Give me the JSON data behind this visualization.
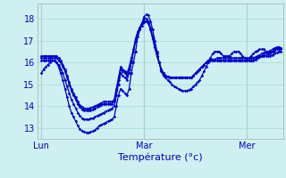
{
  "xlabel": "Température (°c)",
  "background_color": "#cff0f0",
  "grid_color": "#aadddd",
  "line_color": "#0000cc",
  "marker": "D",
  "marker_size": 1.8,
  "linewidth": 0.9,
  "day_labels": [
    "Lun",
    "Mar",
    "Mer"
  ],
  "day_positions": [
    0,
    48,
    96
  ],
  "yticks": [
    13,
    14,
    15,
    16,
    17,
    18
  ],
  "ylim": [
    12.5,
    18.7
  ],
  "xlim": [
    -2,
    113
  ],
  "n_points": 113,
  "series": [
    [
      15.5,
      15.7,
      15.8,
      15.9,
      16.0,
      16.1,
      16.1,
      16.0,
      15.8,
      15.5,
      15.2,
      14.8,
      14.4,
      14.0,
      13.7,
      13.5,
      13.3,
      13.1,
      12.95,
      12.85,
      12.82,
      12.8,
      12.8,
      12.82,
      12.85,
      12.9,
      13.0,
      13.1,
      13.15,
      13.2,
      13.25,
      13.3,
      13.35,
      13.4,
      13.5,
      14.0,
      14.5,
      14.8,
      14.7,
      14.6,
      14.5,
      14.8,
      15.5,
      16.0,
      16.5,
      17.2,
      17.5,
      17.8,
      18.1,
      18.2,
      18.15,
      17.9,
      17.5,
      17.0,
      16.5,
      16.0,
      15.6,
      15.4,
      15.3,
      15.2,
      15.1,
      15.0,
      14.9,
      14.85,
      14.8,
      14.75,
      14.7,
      14.7,
      14.72,
      14.75,
      14.8,
      14.9,
      15.0,
      15.1,
      15.2,
      15.4,
      15.6,
      15.8,
      16.0,
      16.2,
      16.4,
      16.5,
      16.5,
      16.5,
      16.4,
      16.3,
      16.3,
      16.3,
      16.3,
      16.4,
      16.5,
      16.5,
      16.5,
      16.4,
      16.3,
      16.2,
      16.1,
      16.2,
      16.3,
      16.4,
      16.5,
      16.55,
      16.6,
      16.6,
      16.6,
      16.5,
      16.4,
      16.4,
      16.5,
      16.6,
      16.65,
      16.7,
      16.65
    ],
    [
      16.1,
      16.1,
      16.1,
      16.1,
      16.1,
      16.1,
      16.1,
      16.0,
      15.9,
      15.7,
      15.5,
      15.2,
      14.9,
      14.6,
      14.3,
      14.1,
      13.9,
      13.7,
      13.55,
      13.45,
      13.4,
      13.4,
      13.4,
      13.42,
      13.45,
      13.5,
      13.55,
      13.6,
      13.65,
      13.7,
      13.75,
      13.8,
      13.85,
      13.9,
      14.0,
      14.5,
      15.0,
      15.5,
      15.4,
      15.3,
      15.2,
      15.5,
      16.0,
      16.5,
      17.0,
      17.4,
      17.6,
      17.8,
      18.0,
      18.0,
      17.9,
      17.6,
      17.2,
      16.8,
      16.4,
      16.0,
      15.7,
      15.5,
      15.4,
      15.35,
      15.3,
      15.3,
      15.3,
      15.3,
      15.3,
      15.3,
      15.3,
      15.3,
      15.3,
      15.3,
      15.3,
      15.4,
      15.5,
      15.6,
      15.7,
      15.8,
      15.9,
      16.0,
      16.1,
      16.15,
      16.15,
      16.15,
      16.1,
      16.1,
      16.1,
      16.1,
      16.1,
      16.1,
      16.1,
      16.1,
      16.1,
      16.1,
      16.1,
      16.1,
      16.1,
      16.1,
      16.1,
      16.1,
      16.1,
      16.1,
      16.15,
      16.2,
      16.25,
      16.3,
      16.3,
      16.3,
      16.3,
      16.3,
      16.35,
      16.4,
      16.45,
      16.5,
      16.5
    ],
    [
      16.2,
      16.2,
      16.2,
      16.2,
      16.2,
      16.2,
      16.2,
      16.2,
      16.1,
      16.0,
      15.8,
      15.6,
      15.3,
      15.0,
      14.7,
      14.5,
      14.3,
      14.1,
      13.95,
      13.85,
      13.8,
      13.8,
      13.8,
      13.82,
      13.85,
      13.9,
      13.95,
      14.0,
      14.05,
      14.1,
      14.1,
      14.1,
      14.1,
      14.1,
      14.2,
      14.7,
      15.2,
      15.7,
      15.6,
      15.5,
      15.4,
      15.7,
      16.1,
      16.5,
      17.0,
      17.3,
      17.5,
      17.7,
      17.85,
      17.9,
      17.8,
      17.5,
      17.1,
      16.7,
      16.3,
      16.0,
      15.7,
      15.5,
      15.4,
      15.35,
      15.3,
      15.3,
      15.3,
      15.3,
      15.3,
      15.3,
      15.3,
      15.3,
      15.3,
      15.3,
      15.3,
      15.4,
      15.5,
      15.6,
      15.7,
      15.8,
      15.9,
      16.0,
      16.1,
      16.1,
      16.1,
      16.1,
      16.1,
      16.1,
      16.1,
      16.1,
      16.1,
      16.1,
      16.1,
      16.1,
      16.1,
      16.1,
      16.1,
      16.1,
      16.1,
      16.1,
      16.1,
      16.1,
      16.1,
      16.1,
      16.15,
      16.2,
      16.25,
      16.3,
      16.35,
      16.4,
      16.4,
      16.45,
      16.5,
      16.55,
      16.6,
      16.6,
      16.6
    ],
    [
      16.3,
      16.3,
      16.3,
      16.3,
      16.3,
      16.3,
      16.3,
      16.3,
      16.2,
      16.1,
      15.9,
      15.7,
      15.4,
      15.1,
      14.8,
      14.6,
      14.4,
      14.2,
      14.05,
      13.95,
      13.9,
      13.9,
      13.9,
      13.92,
      13.95,
      14.0,
      14.05,
      14.1,
      14.15,
      14.2,
      14.2,
      14.2,
      14.2,
      14.2,
      14.3,
      14.8,
      15.3,
      15.8,
      15.7,
      15.6,
      15.5,
      15.8,
      16.2,
      16.6,
      17.1,
      17.4,
      17.6,
      17.8,
      17.9,
      17.9,
      17.8,
      17.5,
      17.1,
      16.7,
      16.3,
      16.0,
      15.7,
      15.5,
      15.4,
      15.35,
      15.3,
      15.3,
      15.3,
      15.3,
      15.3,
      15.3,
      15.3,
      15.3,
      15.3,
      15.3,
      15.3,
      15.4,
      15.5,
      15.6,
      15.7,
      15.8,
      15.9,
      16.0,
      16.1,
      16.1,
      16.1,
      16.15,
      16.2,
      16.2,
      16.2,
      16.2,
      16.2,
      16.2,
      16.2,
      16.2,
      16.2,
      16.2,
      16.2,
      16.2,
      16.2,
      16.2,
      16.2,
      16.2,
      16.2,
      16.2,
      16.25,
      16.3,
      16.35,
      16.4,
      16.45,
      16.5,
      16.5,
      16.55,
      16.6,
      16.65,
      16.7,
      16.7,
      16.65
    ]
  ]
}
